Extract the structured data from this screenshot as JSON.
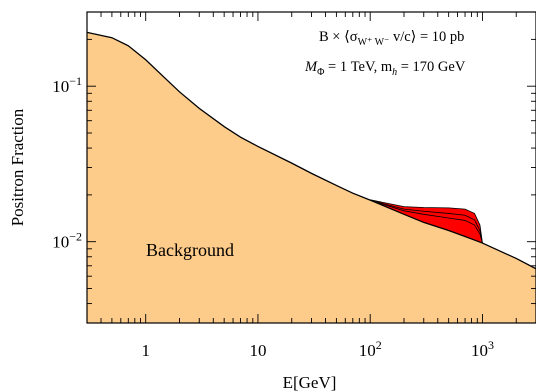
{
  "chart_data": {
    "type": "area",
    "xlabel": "E[GeV]",
    "ylabel": "Positron Fraction",
    "x_scale": "log",
    "y_scale": "log",
    "xlim": [
      0.3,
      3000
    ],
    "ylim": [
      0.003,
      0.3
    ],
    "x_ticks": [
      {
        "value": 1,
        "label": "1"
      },
      {
        "value": 10,
        "label": "10"
      },
      {
        "value": 100,
        "label": "10",
        "exp": "2"
      },
      {
        "value": 1000,
        "label": "10",
        "exp": "3"
      }
    ],
    "y_ticks": [
      {
        "value": 0.01,
        "label": "10",
        "exp": "−2"
      },
      {
        "value": 0.1,
        "label": "10",
        "exp": "−1"
      }
    ],
    "annotations": [
      {
        "text": "B × ⟨σ",
        "sub": "W⁺ W⁻",
        "after": " v/c⟩ = 10 pb"
      },
      {
        "text": "M",
        "sub": "Φ",
        "after": " = 1 TeV,  m",
        "sub2": "h",
        "after2": " = 170 GeV"
      }
    ],
    "region_label": "Background",
    "colors": {
      "background_fill": "#fdcb8a",
      "signal_fill": "#ff0000",
      "signal_light": "#ff6a1a",
      "curve": "#000000"
    },
    "series": [
      {
        "name": "Background",
        "x": [
          0.3,
          0.5,
          0.7,
          1,
          1.5,
          2,
          3,
          5,
          7,
          10,
          20,
          30,
          50,
          70,
          100,
          200,
          300,
          500,
          700,
          1000,
          2000,
          3000
        ],
        "y": [
          0.222,
          0.205,
          0.182,
          0.148,
          0.112,
          0.092,
          0.072,
          0.055,
          0.047,
          0.041,
          0.032,
          0.0275,
          0.023,
          0.0205,
          0.0185,
          0.015,
          0.0133,
          0.0118,
          0.0108,
          0.0098,
          0.0078,
          0.0067
        ]
      },
      {
        "name": "",
        "x": [
          100,
          200,
          300,
          500,
          700,
          850,
          950,
          1000
        ],
        "y": [
          0.0185,
          0.0158,
          0.015,
          0.0142,
          0.0137,
          0.0128,
          0.0112,
          0.0098
        ]
      },
      {
        "name": "",
        "x": [
          100,
          200,
          300,
          500,
          700,
          850,
          950,
          1000
        ],
        "y": [
          0.0185,
          0.0162,
          0.0157,
          0.0152,
          0.0148,
          0.0138,
          0.0118,
          0.0098
        ]
      },
      {
        "name": "",
        "x": [
          100,
          200,
          300,
          500,
          700,
          850,
          950,
          1000
        ],
        "y": [
          0.0186,
          0.0168,
          0.0166,
          0.0165,
          0.0162,
          0.0152,
          0.0128,
          0.0098
        ]
      }
    ]
  }
}
